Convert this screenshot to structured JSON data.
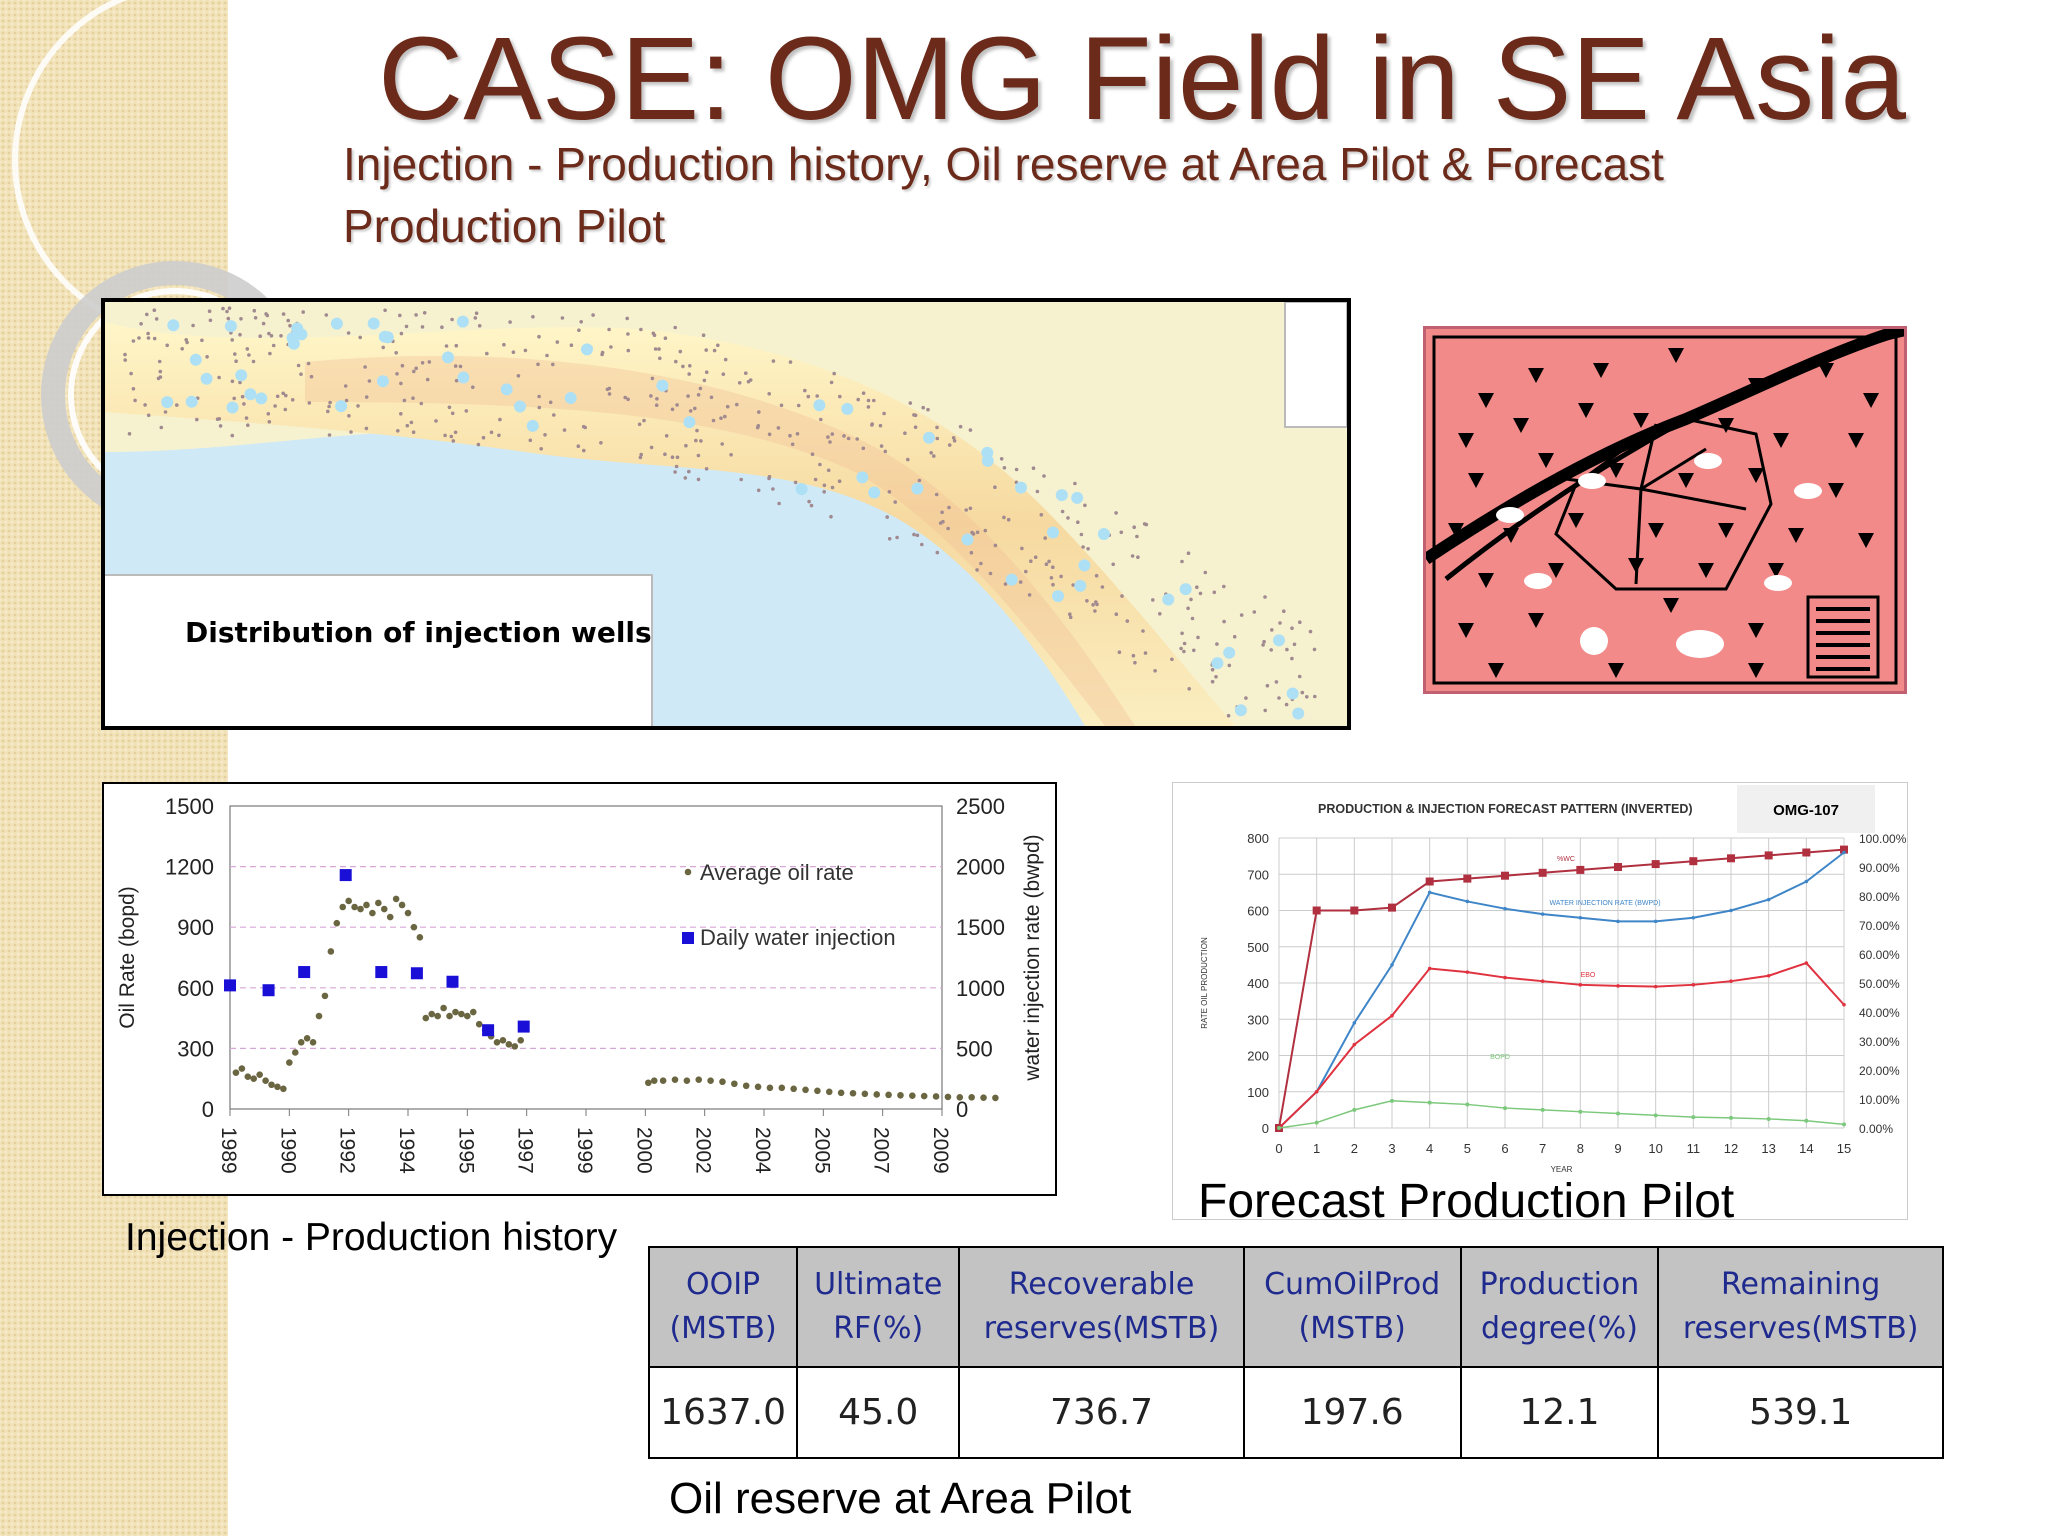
{
  "slide": {
    "title": "CASE: OMG Field in SE Asia",
    "subtitle_line1": "Injection - Production history, Oil reserve at Area Pilot & Forecast",
    "subtitle_line2": "Production Pilot"
  },
  "map": {
    "label": "Distribution of injection wells"
  },
  "captions": {
    "history": "Injection - Production history",
    "forecast": "Forecast Production Pilot",
    "reserve": "Oil reserve at Area Pilot"
  },
  "reserves_table": {
    "headers": [
      [
        "OOIP",
        "(MSTB)"
      ],
      [
        "Ultimate",
        "RF(%)"
      ],
      [
        "Recoverable",
        "reserves(MSTB)"
      ],
      [
        "CumOilProd",
        "(MSTB)"
      ],
      [
        "Production",
        "degree(%)"
      ],
      [
        "Remaining",
        "reserves(MSTB)"
      ]
    ],
    "row": [
      "1637.0",
      "45.0",
      "736.7",
      "197.6",
      "12.1",
      "539.1"
    ]
  },
  "colors": {
    "title": "#6b2a1a",
    "oil_marker": "#6b6642",
    "injection_marker": "#1a0fd6",
    "table_header_text": "#1f2a8f",
    "pilot_background": "#f28a8a",
    "forecast_wwc": "#b03040",
    "forecast_water": "#3f86c8",
    "forecast_ebo": "#e0323f",
    "forecast_bopd": "#7cc87c"
  },
  "chart_data": [
    {
      "type": "scatter",
      "title": "",
      "xlabel": "",
      "ylabel": "Oil Rate (bopd)",
      "y2label": "water injection rate (bwpd)",
      "x_ticks": [
        "1989",
        "1990",
        "1992",
        "1994",
        "1995",
        "1997",
        "1999",
        "2000",
        "2002",
        "2004",
        "2005",
        "2007",
        "2009"
      ],
      "ylim": [
        0,
        1500
      ],
      "y_ticks": [
        "0",
        "300",
        "600",
        "900",
        "1200",
        "1500"
      ],
      "y2lim": [
        0,
        2500
      ],
      "y2_ticks": [
        "0",
        "500",
        "1000",
        "1500",
        "2000",
        "2500"
      ],
      "legend_position": "top-right",
      "series": [
        {
          "name": "Average oil rate",
          "axis": "left",
          "points": [
            [
              0.1,
              180
            ],
            [
              0.2,
              200
            ],
            [
              0.3,
              160
            ],
            [
              0.4,
              150
            ],
            [
              0.5,
              170
            ],
            [
              0.6,
              140
            ],
            [
              0.7,
              120
            ],
            [
              0.8,
              110
            ],
            [
              0.9,
              100
            ],
            [
              1.0,
              230
            ],
            [
              1.1,
              280
            ],
            [
              1.2,
              330
            ],
            [
              1.3,
              350
            ],
            [
              1.4,
              330
            ],
            [
              1.5,
              460
            ],
            [
              1.6,
              560
            ],
            [
              1.7,
              780
            ],
            [
              1.8,
              920
            ],
            [
              1.9,
              1000
            ],
            [
              2.0,
              1030
            ],
            [
              2.1,
              1000
            ],
            [
              2.2,
              990
            ],
            [
              2.3,
              1010
            ],
            [
              2.4,
              970
            ],
            [
              2.5,
              1020
            ],
            [
              2.6,
              990
            ],
            [
              2.7,
              950
            ],
            [
              2.8,
              1040
            ],
            [
              2.9,
              1010
            ],
            [
              3.0,
              970
            ],
            [
              3.1,
              900
            ],
            [
              3.2,
              850
            ],
            [
              3.3,
              450
            ],
            [
              3.4,
              470
            ],
            [
              3.5,
              460
            ],
            [
              3.6,
              500
            ],
            [
              3.7,
              460
            ],
            [
              3.8,
              480
            ],
            [
              3.9,
              470
            ],
            [
              4.0,
              460
            ],
            [
              4.1,
              480
            ],
            [
              4.2,
              420
            ],
            [
              4.3,
              390
            ],
            [
              4.4,
              360
            ],
            [
              4.5,
              330
            ],
            [
              4.6,
              340
            ],
            [
              4.7,
              320
            ],
            [
              4.8,
              310
            ],
            [
              4.9,
              340
            ],
            [
              7.05,
              130
            ],
            [
              7.15,
              140
            ],
            [
              7.3,
              140
            ],
            [
              7.5,
              145
            ],
            [
              7.7,
              140
            ],
            [
              7.9,
              145
            ],
            [
              8.1,
              140
            ],
            [
              8.3,
              135
            ],
            [
              8.5,
              125
            ],
            [
              8.7,
              115
            ],
            [
              8.9,
              110
            ],
            [
              9.1,
              105
            ],
            [
              9.3,
              105
            ],
            [
              9.5,
              100
            ],
            [
              9.7,
              95
            ],
            [
              9.9,
              90
            ],
            [
              10.1,
              85
            ],
            [
              10.3,
              80
            ],
            [
              10.5,
              78
            ],
            [
              10.7,
              75
            ],
            [
              10.9,
              72
            ],
            [
              11.1,
              70
            ],
            [
              11.3,
              68
            ],
            [
              11.5,
              66
            ],
            [
              11.7,
              64
            ],
            [
              11.9,
              62
            ],
            [
              12.1,
              60
            ],
            [
              12.3,
              58
            ],
            [
              12.5,
              58
            ],
            [
              12.7,
              56
            ],
            [
              12.9,
              55
            ]
          ]
        },
        {
          "name": "Daily water injection",
          "axis": "right",
          "points": [
            [
              0.0,
              1020
            ],
            [
              0.65,
              980
            ],
            [
              1.25,
              1130
            ],
            [
              1.95,
              1930
            ],
            [
              2.55,
              1130
            ],
            [
              3.15,
              1120
            ],
            [
              3.75,
              1050
            ],
            [
              4.35,
              650
            ],
            [
              4.95,
              680
            ]
          ]
        }
      ]
    },
    {
      "type": "line",
      "title": "PRODUCTION & INJECTION FORECAST PATTERN (INVERTED)",
      "tag": "OMG-107",
      "xlabel": "YEAR",
      "ylabel": "RATE OIL PRODUCTION",
      "x": [
        0,
        1,
        2,
        3,
        4,
        5,
        6,
        7,
        8,
        9,
        10,
        11,
        12,
        13,
        14,
        15
      ],
      "x_ticks": [
        "0",
        "1",
        "2",
        "3",
        "4",
        "5",
        "6",
        "7",
        "8",
        "9",
        "10",
        "11",
        "12",
        "13",
        "14",
        "15"
      ],
      "ylim": [
        0,
        800
      ],
      "y_ticks": [
        "0",
        "100",
        "200",
        "300",
        "400",
        "500",
        "600",
        "700",
        "800"
      ],
      "y2lim": [
        0,
        100
      ],
      "y2_ticks": [
        "0.00%",
        "10.00%",
        "20.00%",
        "30.00%",
        "40.00%",
        "50.00%",
        "60.00%",
        "70.00%",
        "80.00%",
        "90.00%",
        "100.00%"
      ],
      "grid": true,
      "series": [
        {
          "name": "%WC",
          "axis": "right",
          "values": [
            0,
            75,
            75,
            76,
            85,
            86,
            87,
            88,
            89,
            90,
            91,
            92,
            93,
            94,
            95,
            96
          ]
        },
        {
          "name": "WATER INJECTION RATE (BWPD)",
          "axis": "left",
          "values": [
            0,
            100,
            290,
            450,
            650,
            625,
            605,
            590,
            580,
            570,
            570,
            580,
            600,
            630,
            680,
            760
          ]
        },
        {
          "name": "EBO",
          "axis": "left",
          "values": [
            0,
            100,
            230,
            310,
            440,
            430,
            415,
            405,
            395,
            392,
            390,
            395,
            405,
            420,
            455,
            340
          ]
        },
        {
          "name": "BOPD",
          "axis": "left",
          "values": [
            0,
            15,
            50,
            75,
            70,
            65,
            55,
            50,
            45,
            40,
            35,
            30,
            28,
            25,
            20,
            10
          ]
        }
      ]
    }
  ]
}
